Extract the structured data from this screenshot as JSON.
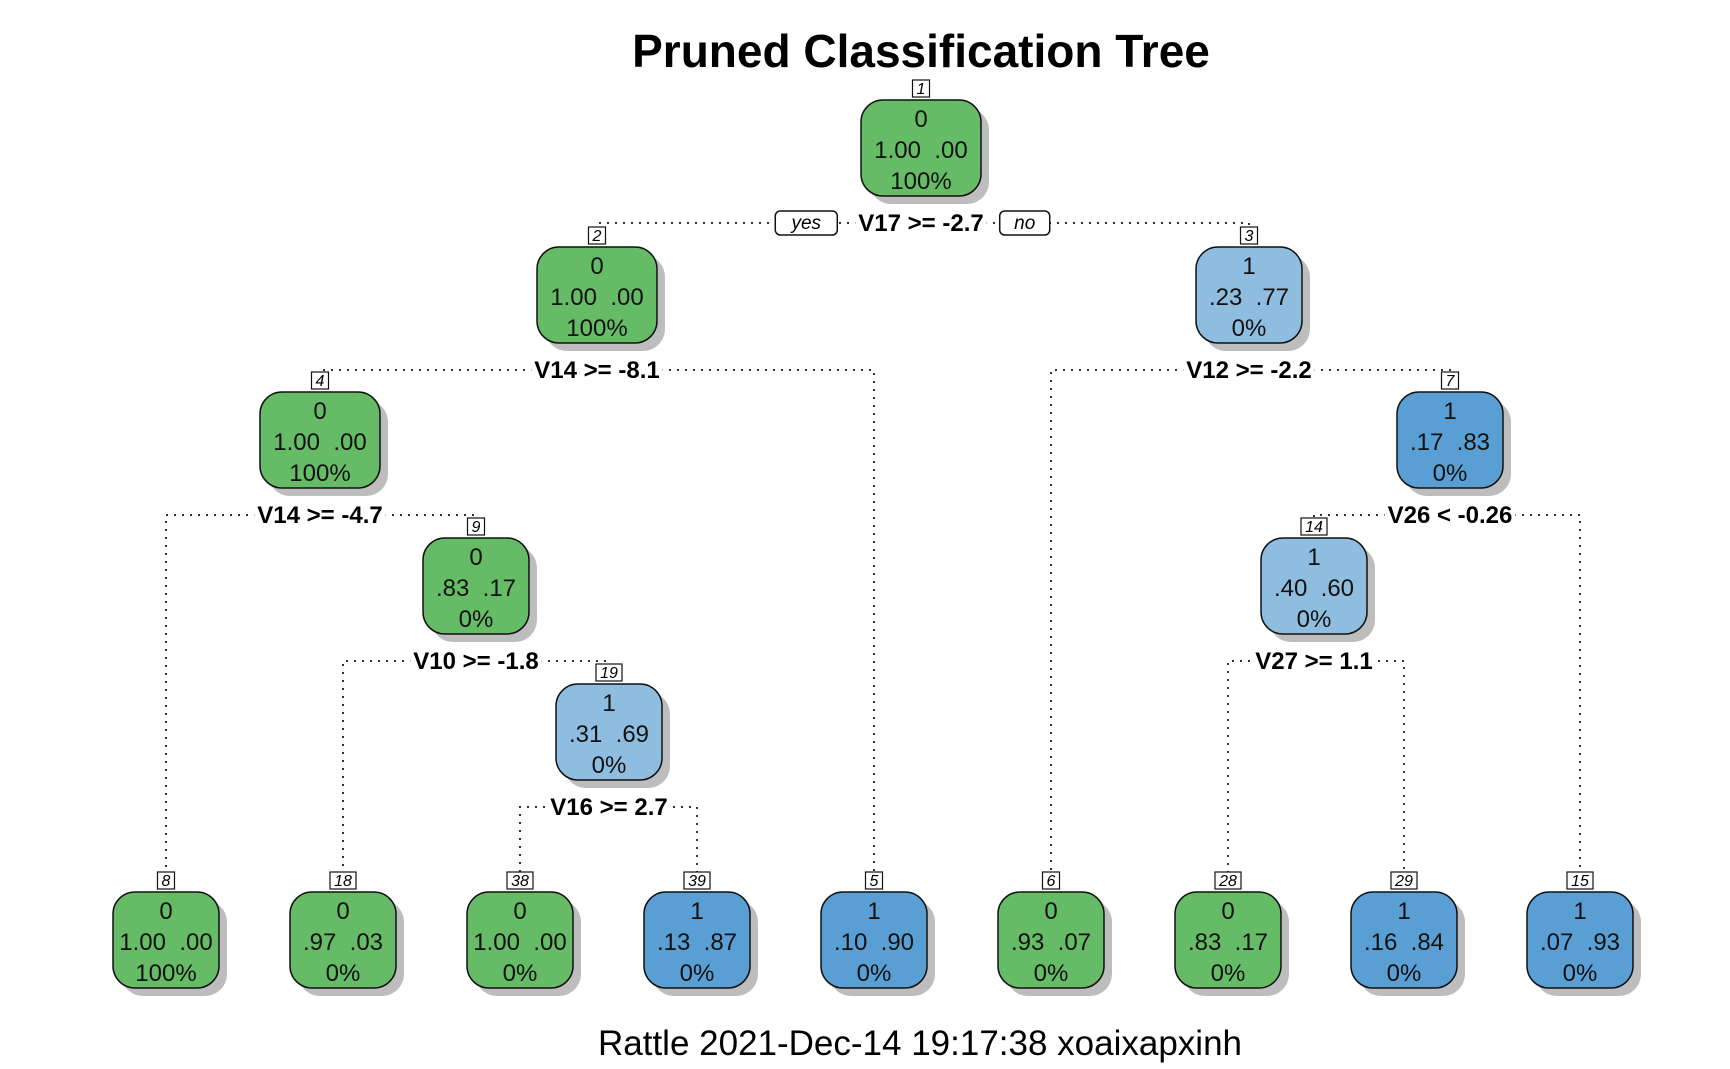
{
  "title": "Pruned Classification Tree",
  "footer": "Rattle 2021-Dec-14 19:17:38 xoaixapxinh",
  "colors": {
    "class0": "#66bb66",
    "class1_light": "#8fbde0",
    "class1_dark": "#5a9fd4",
    "shadow": "#bdbdbd"
  },
  "nodes": [
    {
      "id": "1",
      "label": "0",
      "probs": "1.00  .00",
      "pct": "100%",
      "fill": "class0"
    },
    {
      "id": "2",
      "label": "0",
      "probs": "1.00  .00",
      "pct": "100%",
      "fill": "class0"
    },
    {
      "id": "3",
      "label": "1",
      "probs": ".23  .77",
      "pct": "0%",
      "fill": "class1_light"
    },
    {
      "id": "4",
      "label": "0",
      "probs": "1.00  .00",
      "pct": "100%",
      "fill": "class0"
    },
    {
      "id": "7",
      "label": "1",
      "probs": ".17  .83",
      "pct": "0%",
      "fill": "class1_dark"
    },
    {
      "id": "9",
      "label": "0",
      "probs": ".83  .17",
      "pct": "0%",
      "fill": "class0"
    },
    {
      "id": "14",
      "label": "1",
      "probs": ".40  .60",
      "pct": "0%",
      "fill": "class1_light"
    },
    {
      "id": "19",
      "label": "1",
      "probs": ".31  .69",
      "pct": "0%",
      "fill": "class1_light"
    },
    {
      "id": "8",
      "label": "0",
      "probs": "1.00  .00",
      "pct": "100%",
      "fill": "class0"
    },
    {
      "id": "18",
      "label": "0",
      "probs": ".97  .03",
      "pct": "0%",
      "fill": "class0"
    },
    {
      "id": "38",
      "label": "0",
      "probs": "1.00  .00",
      "pct": "0%",
      "fill": "class0"
    },
    {
      "id": "39",
      "label": "1",
      "probs": ".13  .87",
      "pct": "0%",
      "fill": "class1_dark"
    },
    {
      "id": "5",
      "label": "1",
      "probs": ".10  .90",
      "pct": "0%",
      "fill": "class1_dark"
    },
    {
      "id": "6",
      "label": "0",
      "probs": ".93  .07",
      "pct": "0%",
      "fill": "class0"
    },
    {
      "id": "28",
      "label": "0",
      "probs": ".83  .17",
      "pct": "0%",
      "fill": "class0"
    },
    {
      "id": "29",
      "label": "1",
      "probs": ".16  .84",
      "pct": "0%",
      "fill": "class1_dark"
    },
    {
      "id": "15",
      "label": "1",
      "probs": ".07  .93",
      "pct": "0%",
      "fill": "class1_dark"
    }
  ],
  "splits": [
    {
      "parent": "1",
      "rule": "V17 >= -2.7",
      "left": "2",
      "right": "3"
    },
    {
      "parent": "2",
      "rule": "V14 >= -8.1",
      "left": "4",
      "right": "5"
    },
    {
      "parent": "3",
      "rule": "V12 >= -2.2",
      "left": "6",
      "right": "7"
    },
    {
      "parent": "4",
      "rule": "V14 >= -4.7",
      "left": "8",
      "right": "9"
    },
    {
      "parent": "9",
      "rule": "V10 >= -1.8",
      "left": "18",
      "right": "19"
    },
    {
      "parent": "19",
      "rule": "V16 >= 2.7",
      "left": "38",
      "right": "39"
    },
    {
      "parent": "7",
      "rule": "V26 < -0.26",
      "left": "14",
      "right": "15"
    },
    {
      "parent": "14",
      "rule": "V27 >= 1.1",
      "left": "28",
      "right": "29"
    }
  ],
  "branch_labels": {
    "yes": "yes",
    "no": "no"
  }
}
